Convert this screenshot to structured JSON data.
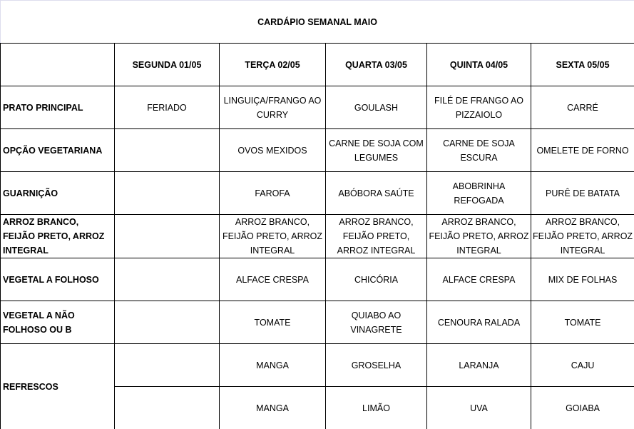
{
  "title": "CARDÁPIO SEMANAL MAIO",
  "days": [
    "SEGUNDA  01/05",
    "TERÇA  02/05",
    "QUARTA 03/05",
    "QUINTA 04/05",
    "SEXTA 05/05"
  ],
  "rows": [
    {
      "label": "PRATO PRINCIPAL",
      "cells": [
        "FERIADO",
        "LINGUIÇA/FRANGO AO CURRY",
        "GOULASH",
        "FILÉ DE FRANGO AO PIZZAIOLO",
        "CARRÉ"
      ]
    },
    {
      "label": "OPÇÃO VEGETARIANA",
      "cells": [
        "",
        "OVOS MEXIDOS",
        "CARNE DE SOJA COM LEGUMES",
        "CARNE DE SOJA ESCURA",
        "OMELETE DE FORNO"
      ]
    },
    {
      "label": "GUARNIÇÃO",
      "cells": [
        "",
        "FAROFA",
        "ABÓBORA SAÚTE",
        "ABOBRINHA REFOGADA",
        "PURÊ DE BATATA"
      ]
    },
    {
      "label": "ARROZ BRANCO, FEIJÃO PRETO, ARROZ INTEGRAL",
      "cells": [
        "",
        "ARROZ BRANCO, FEIJÃO PRETO, ARROZ INTEGRAL",
        "ARROZ BRANCO, FEIJÃO PRETO, ARROZ INTEGRAL",
        "ARROZ BRANCO, FEIJÃO PRETO, ARROZ INTEGRAL",
        "ARROZ BRANCO, FEIJÃO PRETO, ARROZ INTEGRAL"
      ]
    },
    {
      "label": "VEGETAL A FOLHOSO",
      "cells": [
        "",
        "ALFACE CRESPA",
        "CHICÓRIA",
        "ALFACE  CRESPA",
        "MIX DE FOLHAS"
      ]
    },
    {
      "label": "VEGETAL A NÃO FOLHOSO OU B",
      "cells": [
        "",
        "TOMATE",
        "QUIABO AO VINAGRETE",
        "CENOURA RALADA",
        "TOMATE"
      ]
    }
  ],
  "refrescos": {
    "label": "REFRESCOS",
    "rows": [
      [
        "",
        "MANGA",
        "GROSELHA",
        "LARANJA",
        "CAJU"
      ],
      [
        "",
        "MANGA",
        "LIMÃO",
        "UVA",
        "GOIABA"
      ]
    ]
  }
}
